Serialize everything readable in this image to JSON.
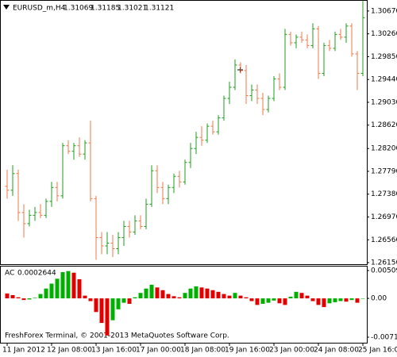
{
  "chart_data": [
    {
      "type": "ohlc",
      "title": "EURUSD_m,H4",
      "header_values": [
        1.31069,
        1.31185,
        1.31021,
        1.31121
      ],
      "open": [
        1.2752,
        1.2745,
        1.2775,
        1.2705,
        1.2685,
        1.27,
        1.2705,
        1.27,
        1.2725,
        1.275,
        1.2735,
        1.2825,
        1.2815,
        1.2825,
        1.281,
        1.283,
        1.273,
        1.266,
        1.2645,
        1.265,
        1.264,
        1.266,
        1.268,
        1.267,
        1.269,
        1.268,
        1.272,
        1.278,
        1.275,
        1.273,
        1.275,
        1.277,
        1.276,
        1.2795,
        1.282,
        1.284,
        1.2835,
        1.286,
        1.285,
        1.2875,
        1.291,
        1.293,
        1.297,
        1.296,
        1.2915,
        1.2925,
        1.291,
        1.289,
        1.291,
        1.2945,
        1.293,
        1.3025,
        1.301,
        1.302,
        1.3015,
        1.3005,
        1.3035,
        1.2955,
        1.3005,
        1.3,
        1.3025,
        1.302,
        1.304,
        1.299,
        1.2955
      ],
      "high": [
        1.2782,
        1.279,
        1.2782,
        1.272,
        1.271,
        1.2715,
        1.272,
        1.273,
        1.276,
        1.276,
        1.283,
        1.2835,
        1.283,
        1.284,
        1.2835,
        1.287,
        1.2735,
        1.267,
        1.267,
        1.2665,
        1.267,
        1.269,
        1.269,
        1.27,
        1.27,
        1.273,
        1.279,
        1.279,
        1.276,
        1.2755,
        1.2775,
        1.278,
        1.28,
        1.283,
        1.285,
        1.286,
        1.2865,
        1.287,
        1.288,
        1.2915,
        1.294,
        1.298,
        1.2975,
        1.297,
        1.2935,
        1.2935,
        1.292,
        1.2915,
        1.295,
        1.2955,
        1.3035,
        1.303,
        1.3025,
        1.303,
        1.3025,
        1.3045,
        1.304,
        1.301,
        1.3015,
        1.303,
        1.3035,
        1.3045,
        1.3045,
        1.2995,
        1.3085
      ],
      "low": [
        1.273,
        1.2735,
        1.269,
        1.266,
        1.268,
        1.269,
        1.2695,
        1.2695,
        1.2715,
        1.2725,
        1.273,
        1.281,
        1.28,
        1.2805,
        1.28,
        1.2725,
        1.262,
        1.263,
        1.263,
        1.2625,
        1.263,
        1.2645,
        1.266,
        1.2665,
        1.2675,
        1.2675,
        1.2715,
        1.274,
        1.272,
        1.272,
        1.274,
        1.275,
        1.2755,
        1.2785,
        1.281,
        1.2825,
        1.283,
        1.2845,
        1.2845,
        1.287,
        1.29,
        1.2925,
        1.2955,
        1.29,
        1.2905,
        1.29,
        1.288,
        1.2885,
        1.2905,
        1.2925,
        1.2925,
        1.3005,
        1.3,
        1.301,
        1.3,
        1.3,
        1.2945,
        1.295,
        1.2995,
        1.2995,
        1.3015,
        1.301,
        1.2985,
        1.2925,
        1.295
      ],
      "close": [
        1.2745,
        1.2775,
        1.2705,
        1.2685,
        1.27,
        1.2705,
        1.27,
        1.2725,
        1.275,
        1.2735,
        1.2825,
        1.2815,
        1.2825,
        1.281,
        1.283,
        1.273,
        1.266,
        1.2645,
        1.265,
        1.264,
        1.266,
        1.268,
        1.267,
        1.269,
        1.268,
        1.272,
        1.278,
        1.275,
        1.273,
        1.275,
        1.277,
        1.276,
        1.2795,
        1.282,
        1.284,
        1.2835,
        1.286,
        1.285,
        1.2875,
        1.291,
        1.293,
        1.297,
        1.296,
        1.2915,
        1.2925,
        1.291,
        1.289,
        1.291,
        1.2945,
        1.293,
        1.3025,
        1.301,
        1.302,
        1.3015,
        1.3005,
        1.3035,
        1.2955,
        1.3005,
        1.3,
        1.3025,
        1.302,
        1.304,
        1.299,
        1.2955,
        1.3055
      ],
      "up_color": "#1e9e1e",
      "down_color": "#f07848",
      "ylim": [
        1.26122,
        1.30868
      ],
      "yticks": [
        {
          "value": 1.3067,
          "label": "1.30670"
        },
        {
          "value": 1.3026,
          "label": "1.30260"
        },
        {
          "value": 1.2985,
          "label": "1.29850"
        },
        {
          "value": 1.2944,
          "label": "1.29440"
        },
        {
          "value": 1.2903,
          "label": "1.29030"
        },
        {
          "value": 1.2862,
          "label": "1.28620"
        },
        {
          "value": 1.282,
          "label": "1.28200"
        },
        {
          "value": 1.2779,
          "label": "1.27790"
        },
        {
          "value": 1.2738,
          "label": "1.27380"
        },
        {
          "value": 1.2697,
          "label": "1.26970"
        },
        {
          "value": 1.2656,
          "label": "1.26560"
        },
        {
          "value": 1.2615,
          "label": "1.26150"
        }
      ],
      "xticks": [
        {
          "value": 0,
          "label": "11 Jan 2012"
        },
        {
          "value": 8,
          "label": "12 Jan 08:00"
        },
        {
          "value": 16,
          "label": "13 Jan 16:00"
        },
        {
          "value": 24,
          "label": "17 Jan 00:00"
        },
        {
          "value": 32,
          "label": "18 Jan 08:00"
        },
        {
          "value": 40,
          "label": "19 Jan 16:00"
        },
        {
          "value": 48,
          "label": "23 Jan 00:00"
        },
        {
          "value": 56,
          "label": "24 Jan 08:00"
        },
        {
          "value": 64,
          "label": "25 Jan 16:00"
        }
      ]
    },
    {
      "type": "histogram",
      "name": "AC",
      "current_value": 0.0002644,
      "footer": "FreshForex Terminal, © 2001-2013 MetaQuotes Software Corp.",
      "values": [
        0.0009,
        0.0006,
        0.0002,
        -0.0003,
        -0.0002,
        0.0001,
        0.0008,
        0.0018,
        0.0027,
        0.0036,
        0.0048,
        0.005,
        0.0047,
        0.0035,
        0.0005,
        -0.0005,
        -0.0025,
        -0.0045,
        -0.0068,
        -0.004,
        -0.002,
        -0.0008,
        -0.001,
        0.0002,
        0.001,
        0.0018,
        0.0025,
        0.002,
        0.0015,
        0.0008,
        0.0004,
        0.0002,
        0.001,
        0.0018,
        0.0022,
        0.002,
        0.0018,
        0.0015,
        0.0012,
        0.0008,
        0.0005,
        0.001,
        0.0005,
        0.0002,
        -0.0005,
        -0.0012,
        -0.001,
        -0.0008,
        -0.0004,
        -0.0009,
        -0.0012,
        0.0003,
        0.0012,
        0.001,
        0.0005,
        -0.0005,
        -0.0012,
        -0.0016,
        -0.0009,
        -0.0007,
        -0.0005,
        -0.0006,
        -0.0003,
        -0.0008,
        0
      ],
      "up_color": "#00b000",
      "down_color": "#e00000",
      "ylim": [
        -0.00812,
        0.00597
      ],
      "yticks": [
        0.005096,
        {
          "value": 0,
          "label": "0.00"
        },
        -0.007105
      ]
    }
  ]
}
